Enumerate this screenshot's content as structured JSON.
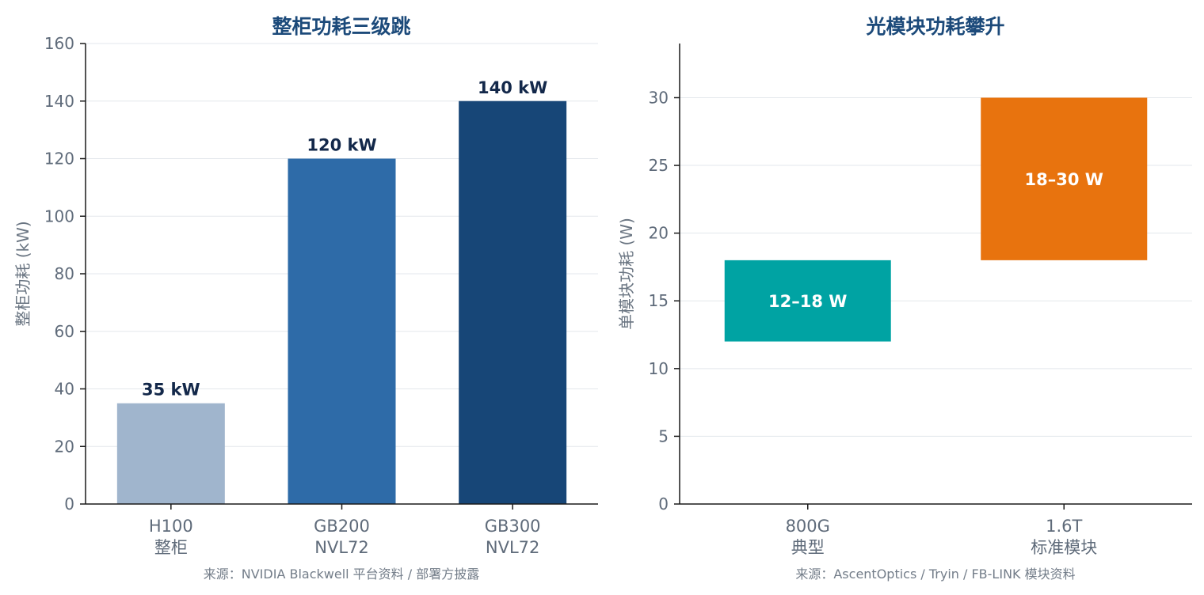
{
  "chart_data": [
    {
      "type": "bar",
      "title": "整柜功耗三级跳",
      "ylabel": "整柜功耗 (kW)",
      "xlabel": "",
      "ylim": [
        0,
        160
      ],
      "yticks": [
        0,
        20,
        40,
        60,
        80,
        100,
        120,
        140,
        160
      ],
      "grid": true,
      "categories": [
        [
          "H100",
          "整柜"
        ],
        [
          "GB200",
          "NVL72"
        ],
        [
          "GB300",
          "NVL72"
        ]
      ],
      "values": [
        35,
        120,
        140
      ],
      "data_labels": [
        "35 kW",
        "120 kW",
        "140 kW"
      ],
      "colors": [
        "#a0b5cd",
        "#2e6ba8",
        "#174677"
      ],
      "source": "来源：NVIDIA Blackwell 平台资料 / 部署方披露"
    },
    {
      "type": "range_bar",
      "title": "光模块功耗攀升",
      "ylabel": "单模块功耗 (W)",
      "xlabel": "",
      "ylim": [
        0,
        34
      ],
      "yticks": [
        0,
        5,
        10,
        15,
        20,
        25,
        30
      ],
      "grid": true,
      "categories": [
        [
          "800G",
          "典型"
        ],
        [
          "1.6T",
          "标准模块"
        ]
      ],
      "ranges": [
        [
          12,
          18
        ],
        [
          18,
          30
        ]
      ],
      "data_labels": [
        "12–18 W",
        "18–30 W"
      ],
      "colors": [
        "#00a3a3",
        "#e8730e"
      ],
      "source": "来源：AscentOptics / Tryin / FB-LINK 模块资料"
    }
  ]
}
